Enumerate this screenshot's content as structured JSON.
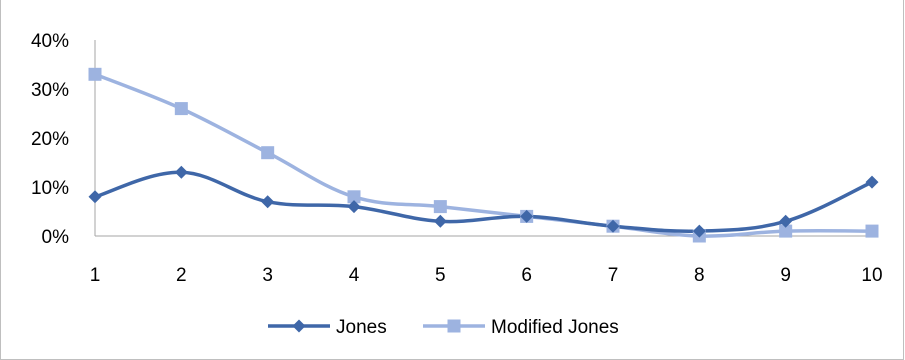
{
  "chart_data": {
    "type": "line",
    "title": "",
    "xlabel": "",
    "ylabel": "",
    "x": [
      1,
      2,
      3,
      4,
      5,
      6,
      7,
      8,
      9,
      10
    ],
    "x_tick_labels": [
      "1",
      "2",
      "3",
      "4",
      "5",
      "6",
      "7",
      "8",
      "9",
      "10"
    ],
    "ylim": [
      0,
      0.4
    ],
    "y_ticks": [
      0,
      0.1,
      0.2,
      0.3,
      0.4
    ],
    "y_tick_labels": [
      "0%",
      "10%",
      "20%",
      "30%",
      "40%"
    ],
    "grid": false,
    "smooth": true,
    "legend_position": "bottom",
    "series": [
      {
        "name": "Jones",
        "marker": "diamond",
        "color": "#3F67A8",
        "values": [
          0.08,
          0.13,
          0.07,
          0.06,
          0.03,
          0.04,
          0.02,
          0.01,
          0.03,
          0.11
        ]
      },
      {
        "name": "Modified Jones",
        "marker": "square",
        "color": "#9DB3E0",
        "values": [
          0.33,
          0.26,
          0.17,
          0.08,
          0.06,
          0.04,
          0.02,
          0.0,
          0.01,
          0.01
        ]
      }
    ]
  }
}
